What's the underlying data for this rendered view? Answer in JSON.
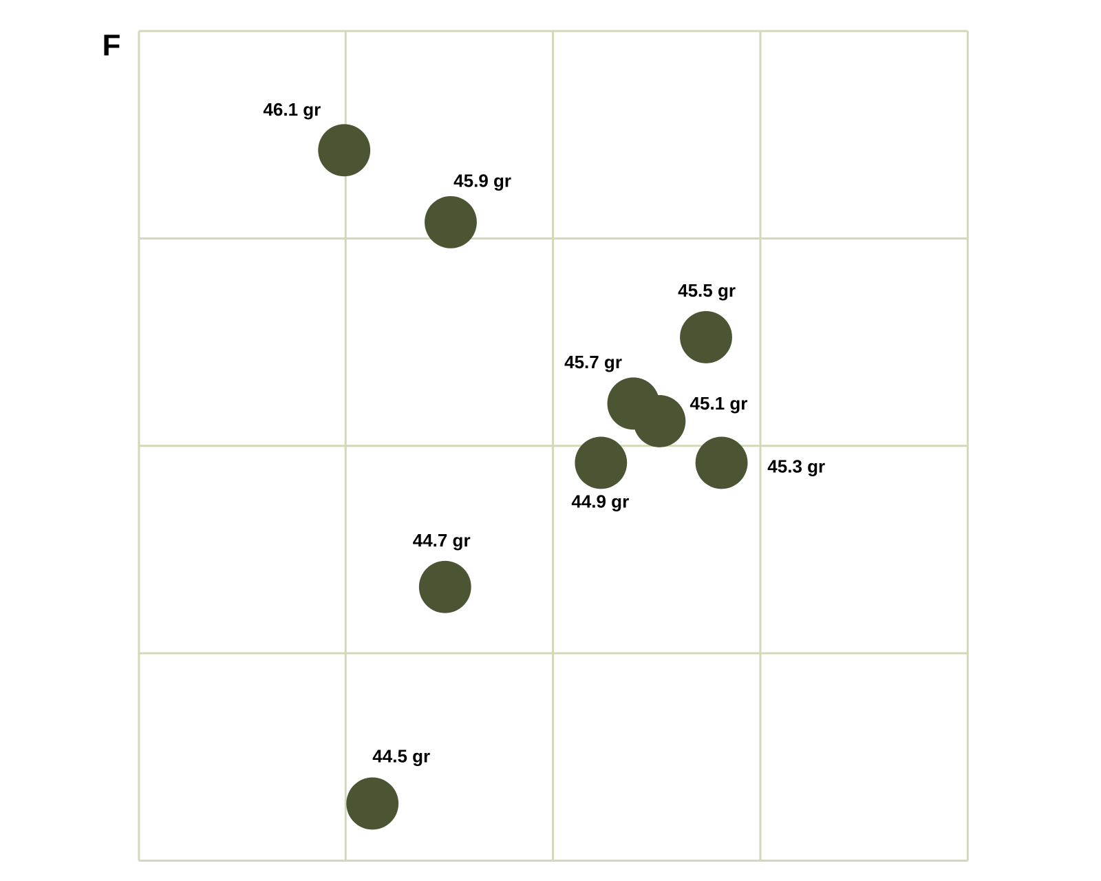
{
  "panel_label": "F",
  "dot_color": "#4b5534",
  "shots": [
    {
      "value": 46.1,
      "label": "46.1 gr"
    },
    {
      "value": 45.9,
      "label": "45.9 gr"
    },
    {
      "value": 45.5,
      "label": "45.5 gr"
    },
    {
      "value": 45.7,
      "label": "45.7 gr"
    },
    {
      "value": 45.1,
      "label": "45.1 gr"
    },
    {
      "value": 44.9,
      "label": "44.9 gr"
    },
    {
      "value": 45.3,
      "label": "45.3 gr"
    },
    {
      "value": 44.7,
      "label": "44.7 gr"
    },
    {
      "value": 44.5,
      "label": "44.5 gr"
    }
  ]
}
